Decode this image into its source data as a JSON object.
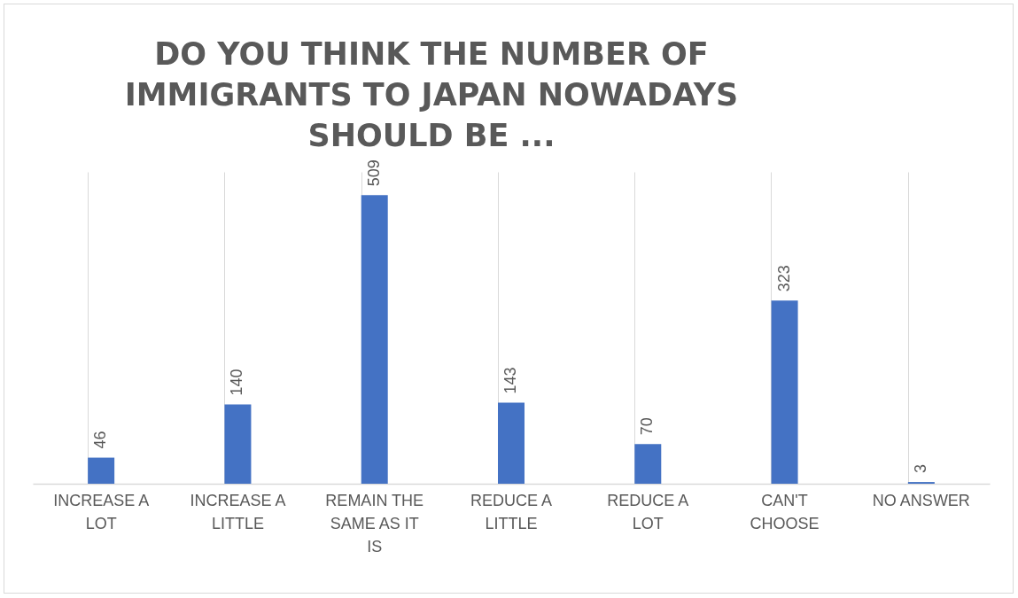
{
  "chart_data": {
    "type": "bar",
    "title": "DO YOU THINK THE NUMBER OF IMMIGRANTS TO JAPAN NOWADAYS SHOULD BE ...",
    "categories": [
      "INCREASE A LOT",
      "INCREASE A LITTLE",
      "REMAIN THE SAME AS IT IS",
      "REDUCE A LITTLE",
      "REDUCE A LOT",
      "CAN'T CHOOSE",
      "NO ANSWER"
    ],
    "values": [
      46,
      140,
      509,
      143,
      70,
      323,
      3
    ],
    "color": "#4472c4",
    "data_labels": true,
    "grid": "x"
  }
}
